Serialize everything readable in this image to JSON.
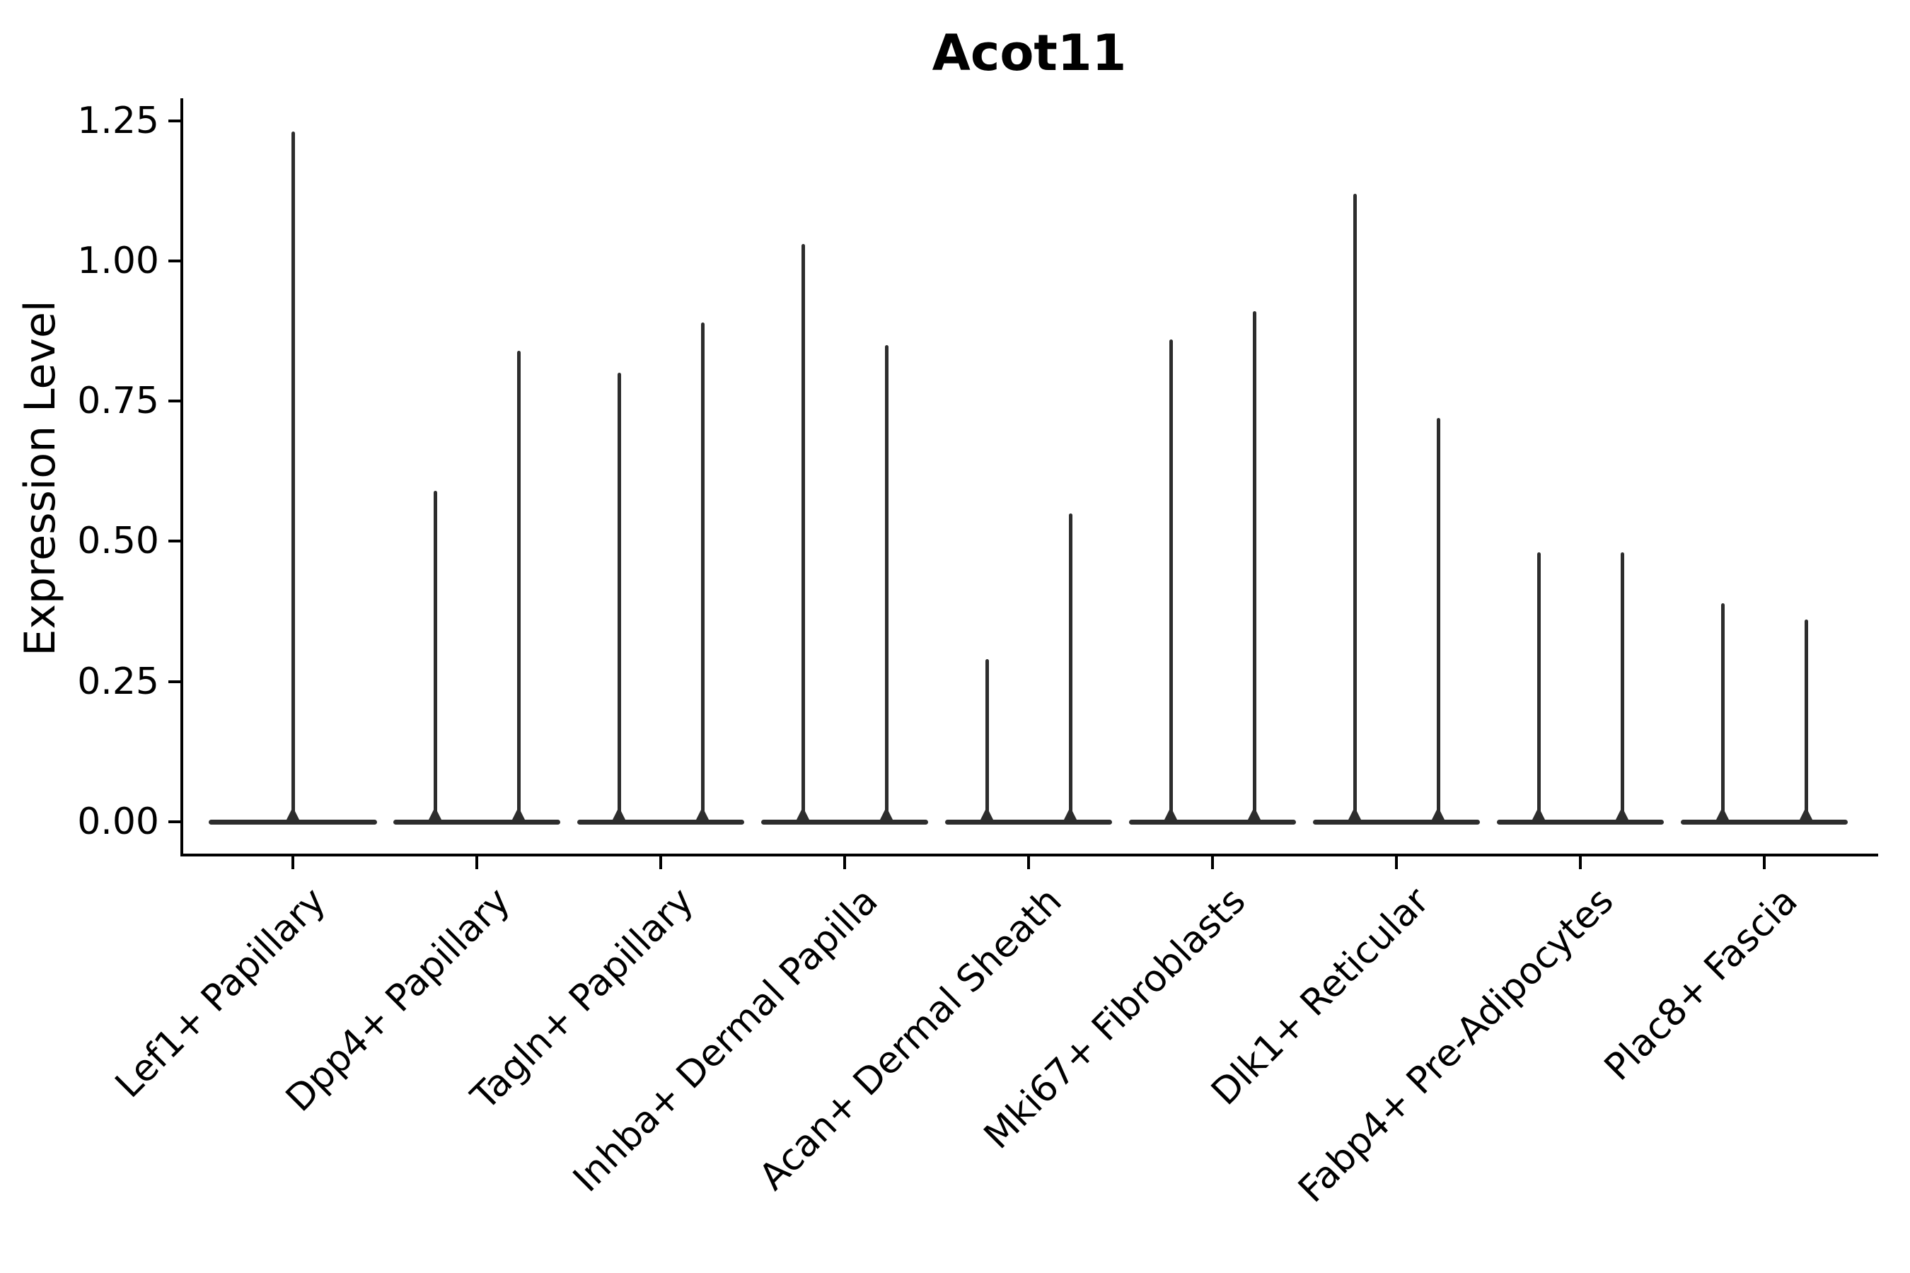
{
  "figure": {
    "title": "Acot11",
    "background": "#ffffff"
  },
  "axes": {
    "ylabel": "Expression Level",
    "ytick_labels": [
      "0.00",
      "0.25",
      "0.50",
      "0.75",
      "1.00",
      "1.25"
    ]
  },
  "colors": {
    "violin": "#2d2d2d",
    "axis": "#000000",
    "text": "#000000"
  },
  "chart_data": {
    "type": "violin",
    "title": "Acot11",
    "xlabel": "",
    "ylabel": "Expression Level",
    "ylim": [
      -0.06,
      1.29
    ],
    "yticks": [
      0,
      0.25,
      0.5,
      0.75,
      1.0,
      1.25
    ],
    "grid": false,
    "legend_position": "none",
    "categories": [
      "Lef1+ Papillary",
      "Dpp4+ Papillary",
      "Tagln+ Papillary",
      "Inhba+ Dermal Papilla",
      "Acan+ Dermal Sheath",
      "Mki67+ Fibroblasts",
      "Dlk1+ Reticular",
      "Fabp4+ Pre-Adipocytes",
      "Plac8+ Fascia"
    ],
    "violins": [
      {
        "category": "Lef1+ Papillary",
        "peak_values": [
          1.23
        ]
      },
      {
        "category": "Dpp4+ Papillary",
        "peak_values": [
          0.59,
          0.84
        ]
      },
      {
        "category": "Tagln+ Papillary",
        "peak_values": [
          0.8,
          0.89
        ]
      },
      {
        "category": "Inhba+ Dermal Papilla",
        "peak_values": [
          1.03,
          0.85
        ]
      },
      {
        "category": "Acan+ Dermal Sheath",
        "peak_values": [
          0.29,
          0.55
        ]
      },
      {
        "category": "Mki67+ Fibroblasts",
        "peak_values": [
          0.86,
          0.91
        ]
      },
      {
        "category": "Dlk1+ Reticular",
        "peak_values": [
          1.12,
          0.72
        ]
      },
      {
        "category": "Fabp4+ Pre-Adipocytes",
        "peak_values": [
          0.48,
          0.48
        ]
      },
      {
        "category": "Plac8+ Fascia",
        "peak_values": [
          0.39,
          0.36
        ]
      }
    ],
    "style_hint": "Each violin is a flat density pancake at 0 with a thin spike rising to its max value; single violin in a category is drawn full-width at the category center, pairs are dodged left/right."
  }
}
